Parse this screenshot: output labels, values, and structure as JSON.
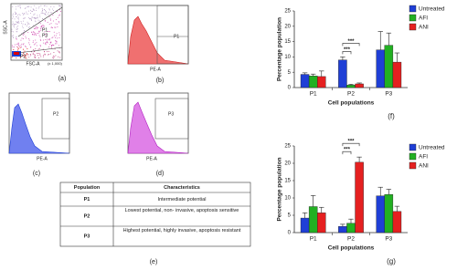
{
  "panels": [
    {
      "label": "(a)",
      "y_axis": "SSC-A",
      "x_axis": "FSC-A",
      "scale": "(x 1,000)",
      "gates": [
        "P1",
        "P3",
        "P2"
      ]
    },
    {
      "label": "(b)",
      "x_axis": "PE-A",
      "gate": "P1"
    },
    {
      "label": "(c)",
      "x_axis": "PE-A",
      "gate": "P2"
    },
    {
      "label": "(d)",
      "x_axis": "PE-A",
      "gate": "P3"
    }
  ],
  "table": {
    "label": "(e)",
    "header": [
      "Population",
      "Characteristics"
    ],
    "rows": [
      [
        "P1",
        "Intermediate potential"
      ],
      [
        "P2",
        "Lowest potential, non- invasive, apoptosis sensitive"
      ],
      [
        "P3",
        "Highest potential, highly invasive, apoptosis resistant"
      ]
    ]
  },
  "chart_data": [
    {
      "type": "bar",
      "label": "(f)",
      "y_label": "Percentage population",
      "x_label": "Cell populations",
      "categories": [
        "P1",
        "P2",
        "P3"
      ],
      "ylim": [
        0,
        25
      ],
      "yticks": [
        0,
        5,
        10,
        15,
        20,
        25
      ],
      "series": [
        {
          "name": "Untreated",
          "color": "#1f3fd6",
          "values": [
            4.3,
            9,
            12.3
          ],
          "errors": [
            0.5,
            1,
            6
          ]
        },
        {
          "name": "AFI",
          "color": "#22b022",
          "values": [
            3.8,
            0.8,
            13.8
          ],
          "errors": [
            0.6,
            0.3,
            4
          ]
        },
        {
          "name": "ANI",
          "color": "#e52020",
          "values": [
            3.6,
            1.2,
            8.3
          ],
          "errors": [
            1.8,
            0.3,
            3
          ]
        }
      ],
      "annotations": [
        "***",
        "***"
      ],
      "legend": "upper right"
    },
    {
      "type": "bar",
      "label": "(g)",
      "y_label": "Percentage population",
      "x_label": "Cell populations",
      "categories": [
        "P1",
        "P2",
        "P3"
      ],
      "ylim": [
        0,
        25
      ],
      "yticks": [
        0,
        5,
        10,
        15,
        20,
        25
      ],
      "series": [
        {
          "name": "Untreated",
          "color": "#1f3fd6",
          "values": [
            4.2,
            1.8,
            10.6
          ],
          "errors": [
            1.5,
            0.6,
            2.5
          ]
        },
        {
          "name": "AFI",
          "color": "#22b022",
          "values": [
            7.5,
            2.7,
            11
          ],
          "errors": [
            3.2,
            1.2,
            1.5
          ]
        },
        {
          "name": "ANI",
          "color": "#e52020",
          "values": [
            5.7,
            20.3,
            6.1
          ],
          "errors": [
            1.6,
            1.5,
            1.5
          ]
        }
      ],
      "annotations": [
        "***",
        "***"
      ],
      "legend": "upper right"
    }
  ]
}
